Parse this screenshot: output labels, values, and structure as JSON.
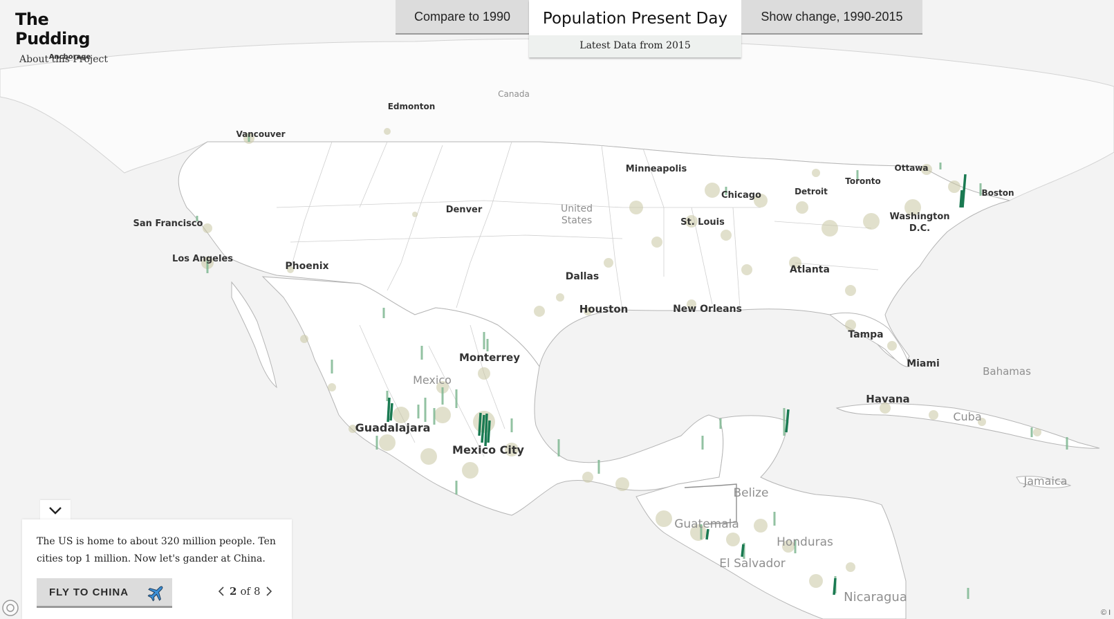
{
  "brand": {
    "name": "The Pudding",
    "about_label": "About this Project"
  },
  "tabs": {
    "left_label": "Compare to 1990",
    "active_title": "Population Present Day",
    "active_subtitle": "Latest Data from 2015",
    "right_label": "Show change, 1990-2015"
  },
  "map": {
    "cities": [
      "Anchorage",
      "Edmonton",
      "Vancouver",
      "Minneapolis",
      "Ottawa",
      "Toronto",
      "Boston",
      "Chicago",
      "Detroit",
      "San Francisco",
      "Denver",
      "St. Louis",
      "Washington",
      "D.C.",
      "Los Angeles",
      "Phoenix",
      "Dallas",
      "Atlanta",
      "Houston",
      "New Orleans",
      "Tampa",
      "Monterrey",
      "Miami",
      "Havana",
      "Guadalajara",
      "Mexico City"
    ],
    "countries": [
      "Canada",
      "United",
      "States",
      "Mexico",
      "Bahamas",
      "Cuba",
      "Jamaica",
      "Belize",
      "Guatemala",
      "Honduras",
      "El Salvador",
      "Nicaragua"
    ],
    "colors": {
      "land": "#ffffff",
      "water": "#f3f3f3",
      "border": "#a8a8a8",
      "spike_high": "#1a7a52",
      "spike_mid": "#5aa67a",
      "density": "#c9c7a3"
    }
  },
  "card": {
    "text": "The US is home to about 320 million people. Ten cities top 1 million. Now let's gander at China.",
    "fly_label": "FLY TO CHINA",
    "fly_icon": "airplane-icon",
    "current_page": "2",
    "of_label": "of",
    "total_pages": "8"
  },
  "attribution": "© I"
}
